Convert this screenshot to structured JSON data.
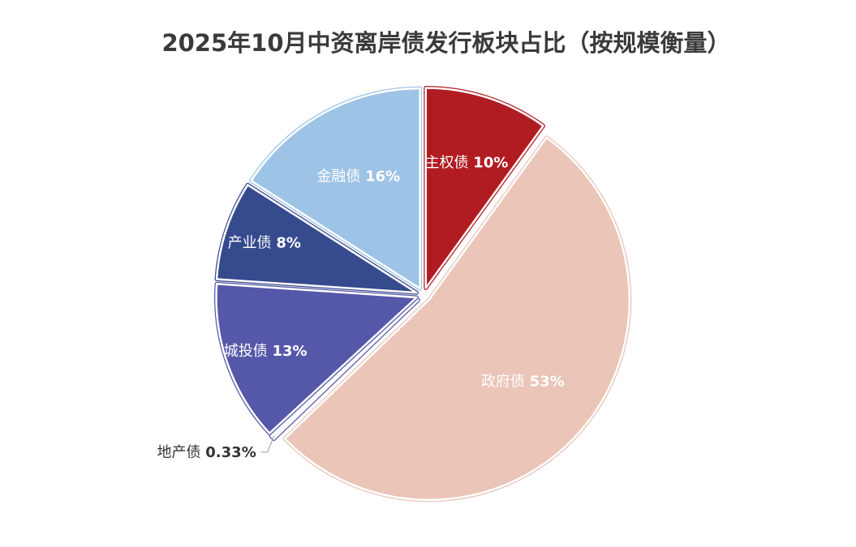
{
  "chart_data": {
    "type": "pie",
    "title": "2025年10月中资离岸债发行板块占比（按规模衡量）",
    "slices": [
      {
        "label": "主权债",
        "value": 10,
        "display": "10%",
        "color": "#b01c22",
        "text_color": "#ffffff"
      },
      {
        "label": "政府债",
        "value": 53,
        "display": "53%",
        "color": "#eac5b8",
        "text_color": "#ffffff"
      },
      {
        "label": "地产债",
        "value": 0.33,
        "display": "0.33%",
        "color": "#f4f7fc",
        "text_color": "#333333"
      },
      {
        "label": "城投债",
        "value": 13,
        "display": "13%",
        "color": "#5558a8",
        "text_color": "#ffffff"
      },
      {
        "label": "产业债",
        "value": 8,
        "display": "8%",
        "color": "#364a8e",
        "text_color": "#ffffff"
      },
      {
        "label": "金融债",
        "value": 16,
        "display": "16%",
        "color": "#9dc3e6",
        "text_color": "#ffffff"
      }
    ],
    "start_angle_deg": 0,
    "direction": "clockwise",
    "exploded": true,
    "legend": "none"
  }
}
